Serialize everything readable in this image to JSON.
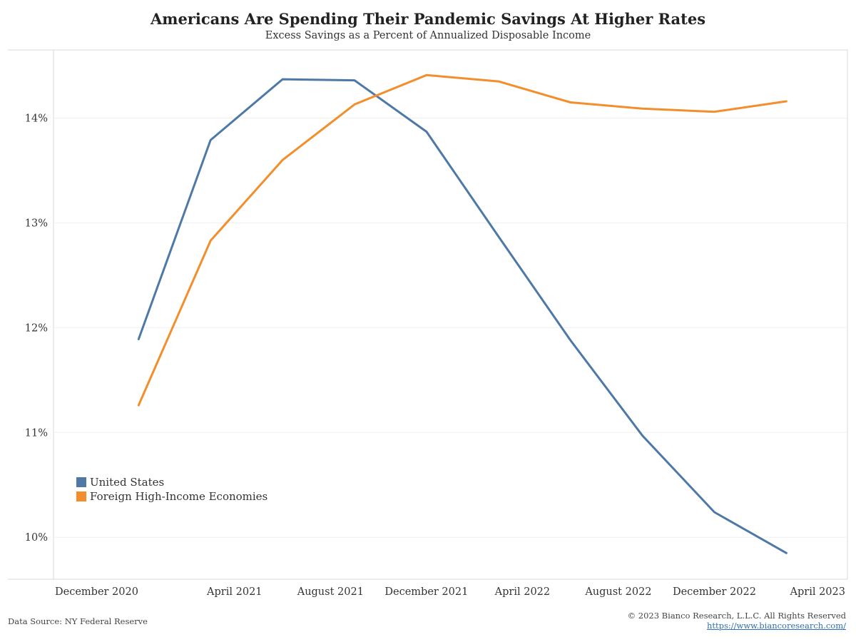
{
  "footer": {
    "source": "Data Source: NY Federal Reserve",
    "copyright": "© 2023 Bianco Research, L.L.C. All Rights Reserved",
    "link": "https://www.biancoresearch.com/"
  },
  "chart_data": {
    "type": "line",
    "title": "Americans Are Spending Their Pandemic Savings At Higher Rates",
    "subtitle": "Excess Savings as a Percent of Annualized Disposable Income",
    "xlabel": "",
    "ylabel": "",
    "x": [
      "2020-12",
      "2021-03",
      "2021-06",
      "2021-09",
      "2021-12",
      "2022-03",
      "2022-06",
      "2022-09",
      "2022-12",
      "2023-03"
    ],
    "x_ticks": [
      {
        "date": "2020-12",
        "label": "December 2020"
      },
      {
        "date": "2021-04",
        "label": "April 2021"
      },
      {
        "date": "2021-08",
        "label": "August 2021"
      },
      {
        "date": "2021-12",
        "label": "December 2021"
      },
      {
        "date": "2022-04",
        "label": "April 2022"
      },
      {
        "date": "2022-08",
        "label": "August 2022"
      },
      {
        "date": "2022-12",
        "label": "December 2022"
      },
      {
        "date": "2023-04",
        "label": "April 2023"
      }
    ],
    "xlim": [
      "2020-10",
      "2023-04"
    ],
    "ylim": [
      9.6,
      14.65
    ],
    "y_ticks": [
      {
        "value": 10,
        "label": "10%"
      },
      {
        "value": 11,
        "label": "11%"
      },
      {
        "value": 12,
        "label": "12%"
      },
      {
        "value": 13,
        "label": "13%"
      },
      {
        "value": 14,
        "label": "14%"
      }
    ],
    "grid": true,
    "legend_position": "bottom-left",
    "series": [
      {
        "name": "United States",
        "color": "#4e79a7",
        "values": [
          11.89,
          13.79,
          14.37,
          14.36,
          13.87,
          12.87,
          11.88,
          10.97,
          10.24,
          9.85
        ]
      },
      {
        "name": "Foreign High-Income Economies",
        "color": "#f28e2b",
        "values": [
          11.26,
          12.83,
          13.6,
          14.13,
          14.41,
          14.35,
          14.15,
          14.09,
          14.06,
          14.16
        ]
      }
    ]
  }
}
